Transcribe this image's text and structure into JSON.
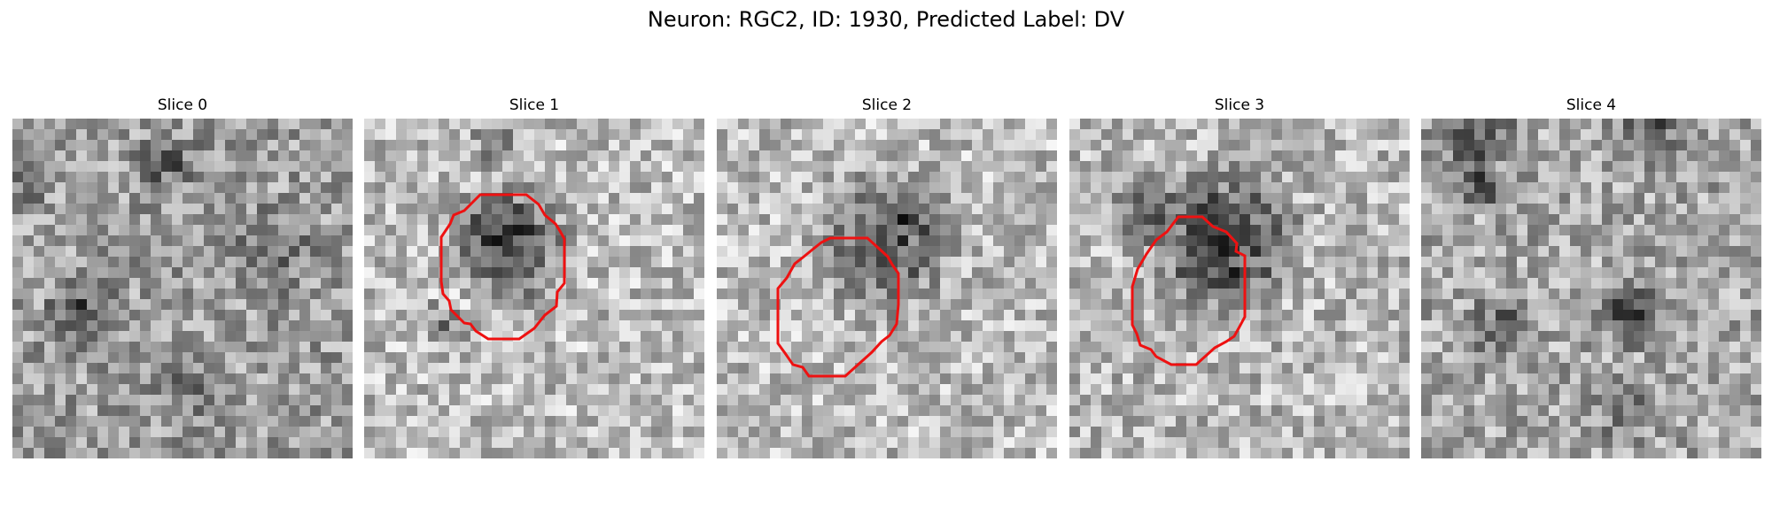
{
  "figure": {
    "title": "Neuron: RGC2, ID: 1930, Predicted Label: DV",
    "colormap": "gray",
    "roi_outline_color": "#ee1111"
  },
  "slices": [
    {
      "title": "Slice 0",
      "has_roi_outline": false
    },
    {
      "title": "Slice 1",
      "has_roi_outline": true
    },
    {
      "title": "Slice 2",
      "has_roi_outline": true
    },
    {
      "title": "Slice 3",
      "has_roi_outline": true
    },
    {
      "title": "Slice 4",
      "has_roi_outline": false
    }
  ]
}
